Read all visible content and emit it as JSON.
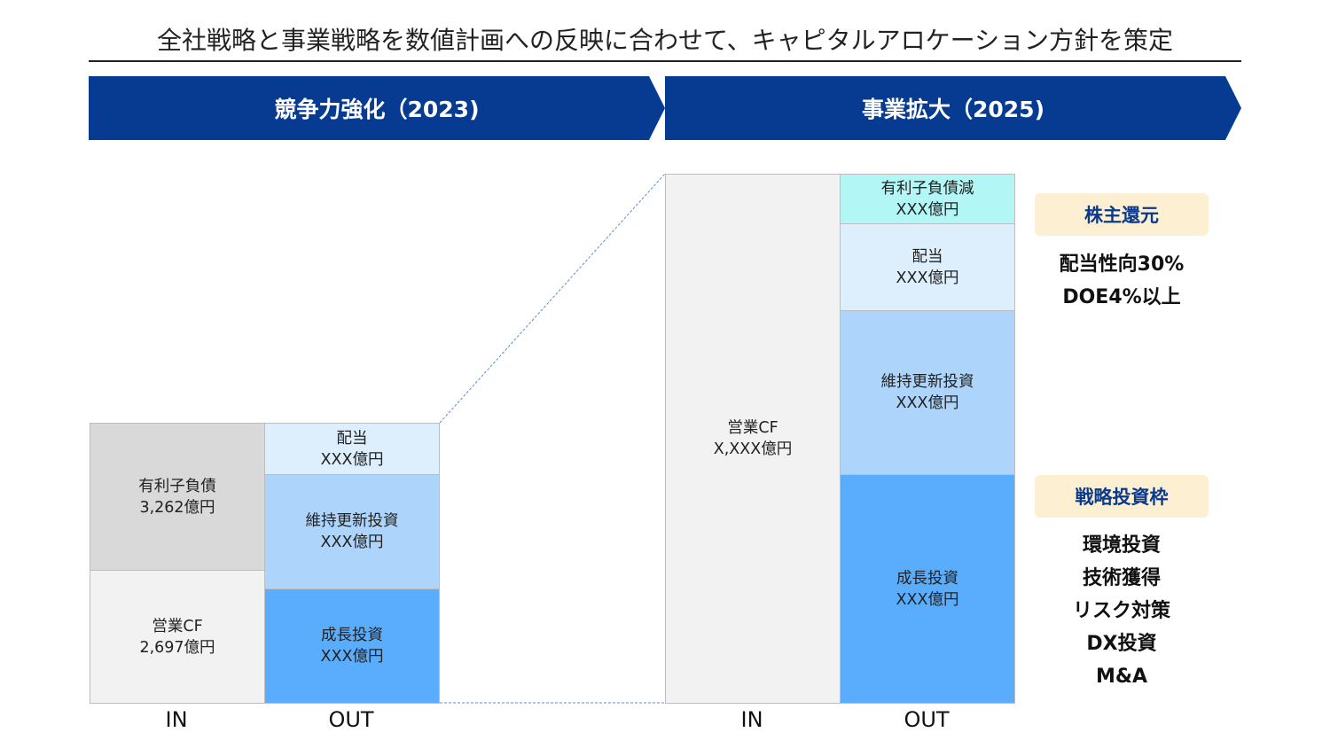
{
  "title": "全社戦略と事業戦略を数値計画への反映に合わせて、キャピタルアロケーション方針を策定",
  "phases": [
    {
      "label": "競争力強化（2023)"
    },
    {
      "label": "事業拡大（2025)"
    }
  ],
  "phase_2023": {
    "in": [
      {
        "name": "有利子負債",
        "value": "3,262億円"
      },
      {
        "name": "営業CF",
        "value": "2,697億円"
      }
    ],
    "out": [
      {
        "name": "配当",
        "value": "XXX億円"
      },
      {
        "name": "維持更新投資",
        "value": "XXX億円"
      },
      {
        "name": "成長投資",
        "value": "XXX億円"
      }
    ],
    "in_label": "IN",
    "out_label": "OUT"
  },
  "phase_2025": {
    "in": [
      {
        "name": "営業CF",
        "value": "X,XXX億円"
      }
    ],
    "out": [
      {
        "name": "有利子負債減",
        "value": "XXX億円"
      },
      {
        "name": "配当",
        "value": "XXX億円"
      },
      {
        "name": "維持更新投資",
        "value": "XXX億円"
      },
      {
        "name": "成長投資",
        "value": "XXX億円"
      }
    ],
    "in_label": "IN",
    "out_label": "OUT"
  },
  "shareholder_return": {
    "label": "株主還元",
    "items": [
      "配当性向30%",
      "DOE4%以上"
    ]
  },
  "strategic_investment": {
    "label": "戦略投資枠",
    "items": [
      "環境投資",
      "技術獲得",
      "リスク対策",
      "DX投資",
      "M&A"
    ]
  },
  "colors": {
    "banner": "#063b91",
    "debt_in": "#d9d9d9",
    "cf_in": "#f2f2f2",
    "dividend": "#ddeefc",
    "maintenance": "#add5fb",
    "growth": "#5aadfc",
    "debt_reduction": "#b2f7f6",
    "badge": "#fdefd2"
  }
}
